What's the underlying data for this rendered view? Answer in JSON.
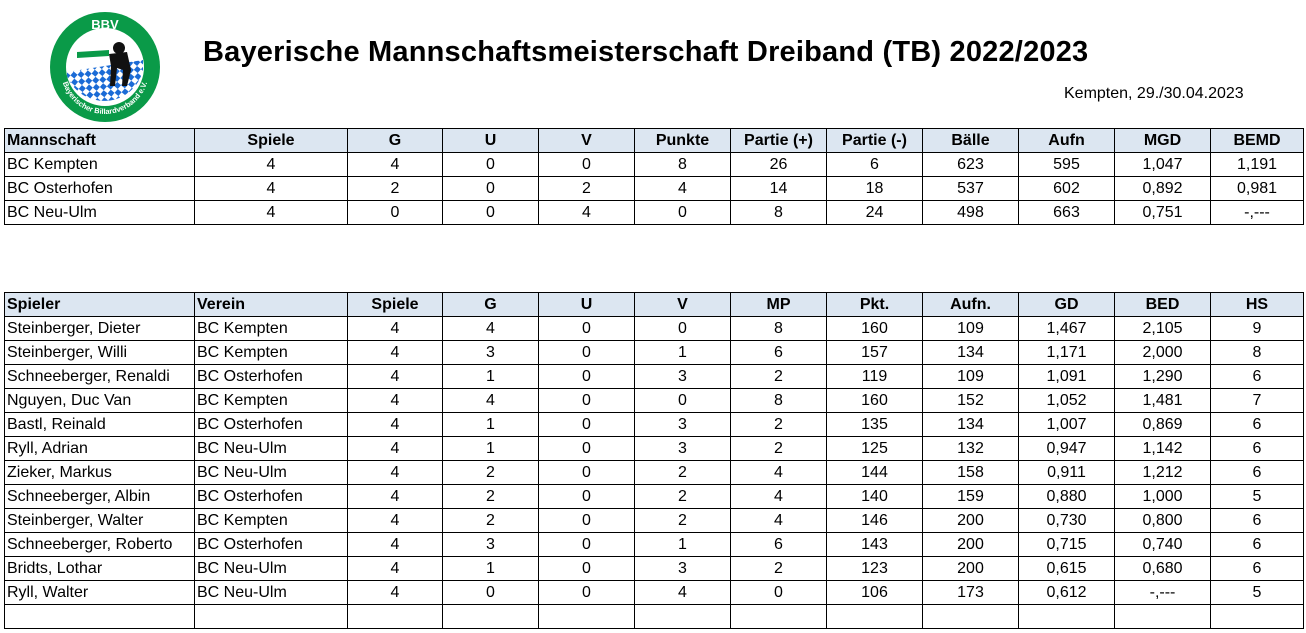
{
  "logo": {
    "text": "BBV",
    "ring_text": "Bayerischer Billardverband e.V.",
    "colors": {
      "green": "#0a9a48",
      "blue": "#1b6bd6",
      "white": "#ffffff"
    }
  },
  "header": {
    "title": "Bayerische Mannschaftsmeisterschaft Dreiband (TB) 2022/2023",
    "subtitle": "Kempten, 29./30.04.2023"
  },
  "colors": {
    "header_bg": "#dce6f1",
    "border": "#000000"
  },
  "teams": {
    "columns": [
      "Mannschaft",
      "Spiele",
      "G",
      "U",
      "V",
      "Punkte",
      "Partie (+)",
      "Partie (-)",
      "Bälle",
      "Aufn",
      "MGD",
      "BEMD"
    ],
    "rows": [
      [
        "BC Kempten",
        "4",
        "4",
        "0",
        "0",
        "8",
        "26",
        "6",
        "623",
        "595",
        "1,047",
        "1,191"
      ],
      [
        "BC Osterhofen",
        "4",
        "2",
        "0",
        "2",
        "4",
        "14",
        "18",
        "537",
        "602",
        "0,892",
        "0,981"
      ],
      [
        "BC Neu-Ulm",
        "4",
        "0",
        "0",
        "4",
        "0",
        "8",
        "24",
        "498",
        "663",
        "0,751",
        "-,---"
      ]
    ]
  },
  "players": {
    "columns": [
      "Spieler",
      "Verein",
      "Spiele",
      "G",
      "U",
      "V",
      "MP",
      "Pkt.",
      "Aufn.",
      "GD",
      "BED",
      "HS"
    ],
    "rows": [
      [
        "Steinberger, Dieter",
        "BC Kempten",
        "4",
        "4",
        "0",
        "0",
        "8",
        "160",
        "109",
        "1,467",
        "2,105",
        "9"
      ],
      [
        "Steinberger, Willi",
        "BC Kempten",
        "4",
        "3",
        "0",
        "1",
        "6",
        "157",
        "134",
        "1,171",
        "2,000",
        "8"
      ],
      [
        "Schneeberger, Renaldi",
        "BC Osterhofen",
        "4",
        "1",
        "0",
        "3",
        "2",
        "119",
        "109",
        "1,091",
        "1,290",
        "6"
      ],
      [
        "Nguyen, Duc Van",
        "BC Kempten",
        "4",
        "4",
        "0",
        "0",
        "8",
        "160",
        "152",
        "1,052",
        "1,481",
        "7"
      ],
      [
        "Bastl, Reinald",
        "BC Osterhofen",
        "4",
        "1",
        "0",
        "3",
        "2",
        "135",
        "134",
        "1,007",
        "0,869",
        "6"
      ],
      [
        "Ryll, Adrian",
        "BC Neu-Ulm",
        "4",
        "1",
        "0",
        "3",
        "2",
        "125",
        "132",
        "0,947",
        "1,142",
        "6"
      ],
      [
        "Zieker, Markus",
        "BC Neu-Ulm",
        "4",
        "2",
        "0",
        "2",
        "4",
        "144",
        "158",
        "0,911",
        "1,212",
        "6"
      ],
      [
        "Schneeberger, Albin",
        "BC Osterhofen",
        "4",
        "2",
        "0",
        "2",
        "4",
        "140",
        "159",
        "0,880",
        "1,000",
        "5"
      ],
      [
        "Steinberger, Walter",
        "BC Kempten",
        "4",
        "2",
        "0",
        "2",
        "4",
        "146",
        "200",
        "0,730",
        "0,800",
        "6"
      ],
      [
        "Schneeberger, Roberto",
        "BC Osterhofen",
        "4",
        "3",
        "0",
        "1",
        "6",
        "143",
        "200",
        "0,715",
        "0,740",
        "6"
      ],
      [
        "Bridts, Lothar",
        "BC Neu-Ulm",
        "4",
        "1",
        "0",
        "3",
        "2",
        "123",
        "200",
        "0,615",
        "0,680",
        "6"
      ],
      [
        "Ryll, Walter",
        "BC Neu-Ulm",
        "4",
        "0",
        "0",
        "4",
        "0",
        "106",
        "173",
        "0,612",
        "-,---",
        "5"
      ]
    ]
  }
}
